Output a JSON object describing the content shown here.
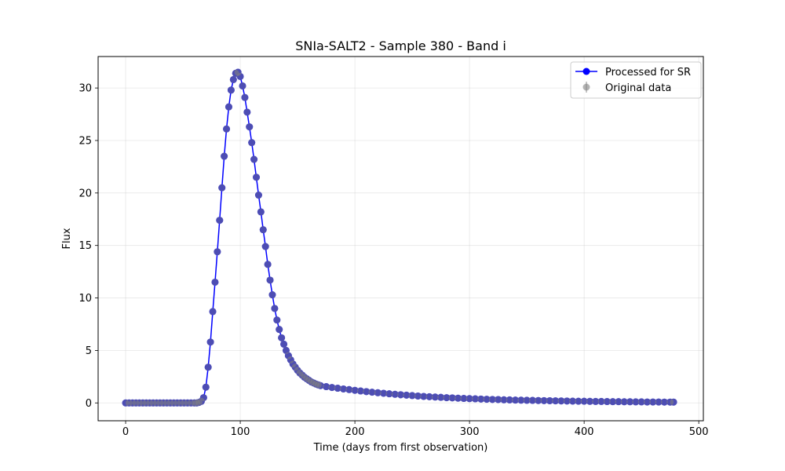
{
  "chart_data": {
    "type": "line",
    "title": "SNIa-SALT2 - Sample 380 - Band i",
    "xlabel": "Time (days from first observation)",
    "ylabel": "Flux",
    "xlim": [
      -24,
      504
    ],
    "ylim": [
      -1.7,
      33
    ],
    "xticks": [
      0,
      100,
      200,
      300,
      400,
      500
    ],
    "yticks": [
      0,
      5,
      10,
      15,
      20,
      25,
      30
    ],
    "grid": true,
    "legend_position": "top-right",
    "legend": [
      "Processed for SR",
      "Original data"
    ],
    "colors": {
      "processed": "#0000ff",
      "original": "#808080"
    },
    "series": [
      {
        "name": "Processed for SR",
        "x": [
          0,
          3,
          6,
          9,
          12,
          15,
          18,
          21,
          24,
          27,
          30,
          33,
          36,
          39,
          42,
          45,
          48,
          51,
          54,
          57,
          60,
          62,
          64,
          66,
          68,
          70,
          72,
          74,
          76,
          78,
          80,
          82,
          84,
          86,
          88,
          90,
          92,
          94,
          96,
          98,
          100,
          102,
          104,
          106,
          108,
          110,
          112,
          114,
          116,
          118,
          120,
          122,
          124,
          126,
          128,
          130,
          132,
          134,
          136,
          138,
          140,
          142,
          144,
          146,
          148,
          150,
          152,
          154,
          156,
          158,
          160,
          162,
          164,
          166,
          168,
          170,
          175,
          180,
          185,
          190,
          195,
          200,
          205,
          210,
          215,
          220,
          225,
          230,
          235,
          240,
          245,
          250,
          255,
          260,
          265,
          270,
          275,
          280,
          285,
          290,
          295,
          300,
          305,
          310,
          315,
          320,
          325,
          330,
          335,
          340,
          345,
          350,
          355,
          360,
          365,
          370,
          375,
          380,
          385,
          390,
          395,
          400,
          405,
          410,
          415,
          420,
          425,
          430,
          435,
          440,
          445,
          450,
          455,
          460,
          465,
          470,
          475,
          478
        ],
        "y": [
          0,
          0,
          0,
          0,
          0,
          0,
          0,
          0,
          0,
          0,
          0,
          0,
          0,
          0,
          0,
          0,
          0,
          0,
          0,
          0,
          0,
          0,
          0.05,
          0.15,
          0.5,
          1.5,
          3.4,
          5.8,
          8.7,
          11.5,
          14.4,
          17.4,
          20.5,
          23.5,
          26.1,
          28.2,
          29.8,
          30.8,
          31.4,
          31.5,
          31.1,
          30.2,
          29.1,
          27.7,
          26.3,
          24.8,
          23.2,
          21.5,
          19.8,
          18.2,
          16.5,
          14.9,
          13.2,
          11.7,
          10.3,
          9.0,
          7.9,
          7.0,
          6.2,
          5.6,
          5.0,
          4.5,
          4.1,
          3.7,
          3.4,
          3.1,
          2.85,
          2.65,
          2.45,
          2.3,
          2.15,
          2.0,
          1.9,
          1.8,
          1.72,
          1.65,
          1.55,
          1.47,
          1.4,
          1.33,
          1.27,
          1.2,
          1.14,
          1.08,
          1.02,
          0.97,
          0.92,
          0.87,
          0.82,
          0.78,
          0.74,
          0.7,
          0.66,
          0.62,
          0.59,
          0.56,
          0.53,
          0.5,
          0.48,
          0.45,
          0.43,
          0.41,
          0.39,
          0.37,
          0.35,
          0.33,
          0.32,
          0.3,
          0.29,
          0.27,
          0.26,
          0.25,
          0.24,
          0.23,
          0.22,
          0.21,
          0.2,
          0.19,
          0.18,
          0.17,
          0.16,
          0.16,
          0.15,
          0.14,
          0.14,
          0.13,
          0.12,
          0.12,
          0.11,
          0.11,
          0.1,
          0.1,
          0.09,
          0.09,
          0.09,
          0.08,
          0.08,
          0.08
        ]
      },
      {
        "name": "Original data",
        "x": [
          0,
          3,
          6,
          9,
          12,
          15,
          18,
          21,
          24,
          27,
          30,
          33,
          36,
          39,
          42,
          45,
          48,
          51,
          54,
          57,
          60,
          62,
          64,
          66,
          68,
          70,
          72,
          74,
          76,
          78,
          80,
          82,
          84,
          86,
          88,
          90,
          92,
          94,
          96,
          98,
          100,
          102,
          104,
          106,
          108,
          110,
          112,
          114,
          116,
          118,
          120,
          122,
          124,
          126,
          128,
          130,
          132,
          134,
          136,
          138,
          140,
          142,
          144,
          146,
          148,
          150,
          152,
          154,
          156,
          158,
          160,
          162,
          164,
          166,
          168,
          170,
          175,
          180,
          185,
          190,
          195,
          200,
          205,
          210,
          215,
          220,
          225,
          230,
          235,
          240,
          245,
          250,
          255,
          260,
          265,
          270,
          275,
          280,
          285,
          290,
          295,
          300,
          305,
          310,
          315,
          320,
          325,
          330,
          335,
          340,
          345,
          350,
          355,
          360,
          365,
          370,
          375,
          380,
          385,
          390,
          395,
          400,
          405,
          410,
          415,
          420,
          425,
          430,
          435,
          440,
          445,
          450,
          455,
          460,
          465,
          470,
          475,
          478
        ],
        "y": [
          0,
          0,
          0,
          0,
          0,
          0,
          0,
          0,
          0,
          0,
          0,
          0,
          0,
          0,
          0,
          0,
          0,
          0,
          0,
          0,
          0,
          0,
          0.05,
          0.15,
          0.5,
          1.5,
          3.4,
          5.8,
          8.7,
          11.5,
          14.4,
          17.4,
          20.5,
          23.5,
          26.1,
          28.2,
          29.8,
          30.8,
          31.4,
          31.5,
          31.1,
          30.2,
          29.1,
          27.7,
          26.3,
          24.8,
          23.2,
          21.5,
          19.8,
          18.2,
          16.5,
          14.9,
          13.2,
          11.7,
          10.3,
          9.0,
          7.9,
          7.0,
          6.2,
          5.6,
          5.0,
          4.5,
          4.1,
          3.7,
          3.4,
          3.1,
          2.85,
          2.65,
          2.45,
          2.3,
          2.15,
          2.0,
          1.9,
          1.8,
          1.72,
          1.65,
          1.55,
          1.47,
          1.4,
          1.33,
          1.27,
          1.2,
          1.14,
          1.08,
          1.02,
          0.97,
          0.92,
          0.87,
          0.82,
          0.78,
          0.74,
          0.7,
          0.66,
          0.62,
          0.59,
          0.56,
          0.53,
          0.5,
          0.48,
          0.45,
          0.43,
          0.41,
          0.39,
          0.37,
          0.35,
          0.33,
          0.32,
          0.3,
          0.29,
          0.27,
          0.26,
          0.25,
          0.24,
          0.23,
          0.22,
          0.21,
          0.2,
          0.19,
          0.18,
          0.17,
          0.16,
          0.16,
          0.15,
          0.14,
          0.14,
          0.13,
          0.12,
          0.12,
          0.11,
          0.11,
          0.1,
          0.1,
          0.09,
          0.09,
          0.09,
          0.08,
          0.08,
          0.08
        ]
      }
    ]
  }
}
